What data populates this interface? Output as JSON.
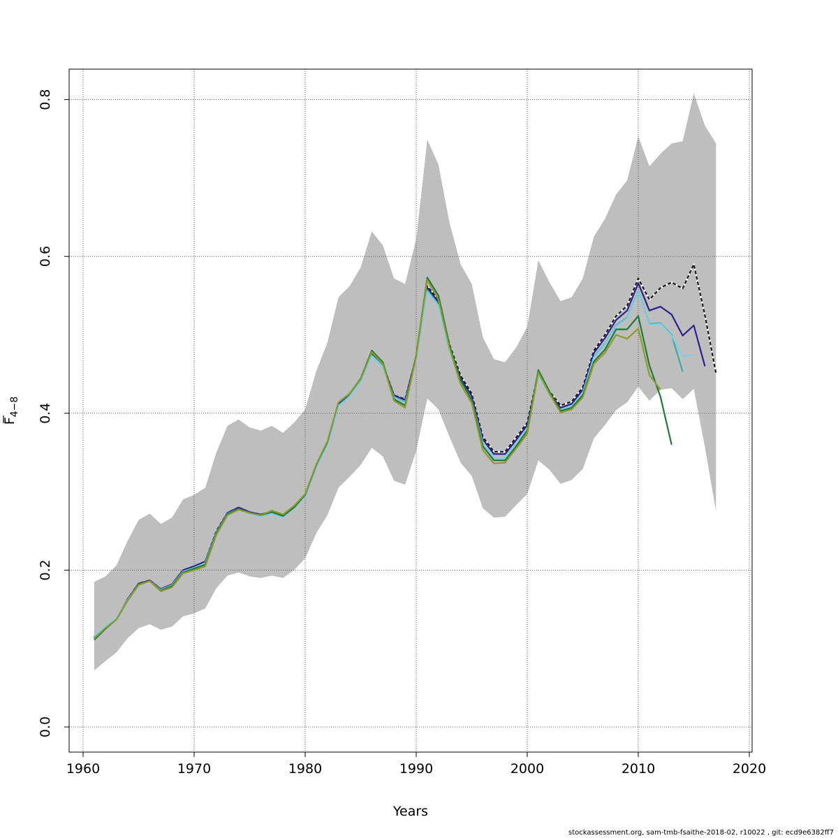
{
  "chart_data": {
    "type": "line",
    "xlabel": "Years",
    "ylabel_main": "F",
    "ylabel_sub": "4−8",
    "xlim": [
      1960,
      2020
    ],
    "ylim": [
      0.0,
      0.8
    ],
    "xticks": [
      "1960",
      "1970",
      "1980",
      "1990",
      "2000",
      "2010",
      "2020"
    ],
    "yticks": [
      "0.0",
      "0.2",
      "0.4",
      "0.6",
      "0.8"
    ],
    "grid": true,
    "confidence_band": {
      "years": [
        1961,
        1962,
        1963,
        1964,
        1965,
        1966,
        1967,
        1968,
        1969,
        1970,
        1971,
        1972,
        1973,
        1974,
        1975,
        1976,
        1977,
        1978,
        1979,
        1980,
        1981,
        1982,
        1983,
        1984,
        1985,
        1986,
        1987,
        1988,
        1989,
        1990,
        1991,
        1992,
        1993,
        1994,
        1995,
        1996,
        1997,
        1998,
        1999,
        2000,
        2001,
        2002,
        2003,
        2004,
        2005,
        2006,
        2007,
        2008,
        2009,
        2010,
        2011,
        2012,
        2013,
        2014,
        2015,
        2016,
        2017
      ],
      "upper": [
        0.185,
        0.192,
        0.206,
        0.237,
        0.264,
        0.272,
        0.259,
        0.267,
        0.29,
        0.296,
        0.305,
        0.35,
        0.384,
        0.392,
        0.382,
        0.378,
        0.384,
        0.375,
        0.388,
        0.405,
        0.454,
        0.49,
        0.548,
        0.562,
        0.586,
        0.632,
        0.614,
        0.572,
        0.565,
        0.622,
        0.749,
        0.717,
        0.643,
        0.59,
        0.565,
        0.497,
        0.469,
        0.465,
        0.484,
        0.51,
        0.595,
        0.567,
        0.543,
        0.548,
        0.572,
        0.625,
        0.648,
        0.679,
        0.697,
        0.753,
        0.715,
        0.731,
        0.744,
        0.747,
        0.808,
        0.767,
        0.744
      ],
      "lower": [
        0.072,
        0.084,
        0.095,
        0.113,
        0.126,
        0.131,
        0.124,
        0.128,
        0.141,
        0.145,
        0.151,
        0.177,
        0.193,
        0.197,
        0.192,
        0.19,
        0.193,
        0.19,
        0.2,
        0.215,
        0.247,
        0.27,
        0.305,
        0.319,
        0.334,
        0.356,
        0.345,
        0.314,
        0.309,
        0.352,
        0.419,
        0.405,
        0.37,
        0.337,
        0.32,
        0.279,
        0.267,
        0.268,
        0.283,
        0.297,
        0.34,
        0.328,
        0.31,
        0.315,
        0.329,
        0.368,
        0.385,
        0.404,
        0.414,
        0.434,
        0.416,
        0.43,
        0.432,
        0.418,
        0.431,
        0.357,
        0.275
      ]
    },
    "series": [
      {
        "color": "#1a1a1a",
        "dashed": true,
        "years": [
          1961,
          1962,
          1963,
          1964,
          1965,
          1966,
          1967,
          1968,
          1969,
          1970,
          1971,
          1972,
          1973,
          1974,
          1975,
          1976,
          1977,
          1978,
          1979,
          1980,
          1981,
          1982,
          1983,
          1984,
          1985,
          1986,
          1987,
          1988,
          1989,
          1990,
          1991,
          1992,
          1993,
          1994,
          1995,
          1996,
          1997,
          1998,
          1999,
          2000,
          2001,
          2002,
          2003,
          2004,
          2005,
          2006,
          2007,
          2008,
          2009,
          2010,
          2011,
          2012,
          2013,
          2014,
          2015,
          2016,
          2017
        ],
        "values": [
          0.114,
          0.126,
          0.138,
          0.163,
          0.183,
          0.187,
          0.176,
          0.182,
          0.2,
          0.205,
          0.211,
          0.25,
          0.273,
          0.28,
          0.274,
          0.271,
          0.275,
          0.27,
          0.281,
          0.296,
          0.334,
          0.363,
          0.413,
          0.424,
          0.443,
          0.477,
          0.463,
          0.423,
          0.418,
          0.472,
          0.562,
          0.545,
          0.488,
          0.448,
          0.425,
          0.37,
          0.351,
          0.351,
          0.369,
          0.388,
          0.452,
          0.428,
          0.41,
          0.415,
          0.433,
          0.48,
          0.5,
          0.524,
          0.537,
          0.572,
          0.545,
          0.56,
          0.567,
          0.559,
          0.59,
          0.525,
          0.451
        ]
      },
      {
        "color": "#2e1f8f",
        "dashed": false,
        "years": [
          1961,
          1962,
          1963,
          1964,
          1965,
          1966,
          1967,
          1968,
          1969,
          1970,
          1971,
          1972,
          1973,
          1974,
          1975,
          1976,
          1977,
          1978,
          1979,
          1980,
          1981,
          1982,
          1983,
          1984,
          1985,
          1986,
          1987,
          1988,
          1989,
          1990,
          1991,
          1992,
          1993,
          1994,
          1995,
          1996,
          1997,
          1998,
          1999,
          2000,
          2001,
          2002,
          2003,
          2004,
          2005,
          2006,
          2007,
          2008,
          2009,
          2010,
          2011,
          2012,
          2013,
          2014,
          2015,
          2016
        ],
        "values": [
          0.114,
          0.126,
          0.138,
          0.163,
          0.183,
          0.187,
          0.176,
          0.182,
          0.2,
          0.205,
          0.211,
          0.249,
          0.273,
          0.28,
          0.274,
          0.271,
          0.275,
          0.269,
          0.28,
          0.295,
          0.333,
          0.362,
          0.412,
          0.423,
          0.442,
          0.476,
          0.462,
          0.423,
          0.417,
          0.472,
          0.56,
          0.542,
          0.485,
          0.445,
          0.422,
          0.367,
          0.348,
          0.348,
          0.366,
          0.385,
          0.45,
          0.426,
          0.407,
          0.412,
          0.43,
          0.477,
          0.496,
          0.519,
          0.531,
          0.566,
          0.531,
          0.536,
          0.526,
          0.499,
          0.512,
          0.46
        ]
      },
      {
        "color": "#3fa8a0",
        "dashed": false,
        "years": [
          1961,
          1962,
          1963,
          1964,
          1965,
          1966,
          1967,
          1968,
          1969,
          1970,
          1971,
          1972,
          1973,
          1974,
          1975,
          1976,
          1977,
          1978,
          1979,
          1980,
          1981,
          1982,
          1983,
          1984,
          1985,
          1986,
          1987,
          1988,
          1989,
          1990,
          1991,
          1992,
          1993,
          1994,
          1995,
          1996,
          1997,
          1998,
          1999,
          2000,
          2001,
          2002,
          2003,
          2004,
          2005,
          2006,
          2007,
          2008,
          2009,
          2010,
          2011,
          2012,
          2013,
          2014
        ],
        "values": [
          0.115,
          0.127,
          0.138,
          0.162,
          0.182,
          0.186,
          0.175,
          0.181,
          0.198,
          0.203,
          0.209,
          0.248,
          0.272,
          0.278,
          0.273,
          0.269,
          0.273,
          0.268,
          0.279,
          0.294,
          0.332,
          0.36,
          0.41,
          0.422,
          0.441,
          0.474,
          0.461,
          0.421,
          0.414,
          0.47,
          0.557,
          0.538,
          0.48,
          0.441,
          0.417,
          0.362,
          0.343,
          0.343,
          0.361,
          0.38,
          0.451,
          0.425,
          0.404,
          0.409,
          0.426,
          0.472,
          0.488,
          0.512,
          0.522,
          0.555,
          0.514,
          0.515,
          0.5,
          0.453
        ]
      },
      {
        "color": "#7fd0e6",
        "dashed": false,
        "years": [
          1961,
          1962,
          1963,
          1964,
          1965,
          1966,
          1967,
          1968,
          1969,
          1970,
          1971,
          1972,
          1973,
          1974,
          1975,
          1976,
          1977,
          1978,
          1979,
          1980,
          1981,
          1982,
          1983,
          1984,
          1985,
          1986,
          1987,
          1988,
          1989,
          1990,
          1991,
          1992,
          1993,
          1994,
          1995,
          1996,
          1997,
          1998,
          1999,
          2000,
          2001,
          2002,
          2003,
          2004,
          2005,
          2006,
          2007,
          2008,
          2009,
          2010,
          2011,
          2012,
          2013,
          2014,
          2015
        ],
        "values": [
          0.116,
          0.128,
          0.139,
          0.162,
          0.182,
          0.186,
          0.175,
          0.181,
          0.198,
          0.203,
          0.209,
          0.248,
          0.271,
          0.278,
          0.272,
          0.268,
          0.272,
          0.267,
          0.279,
          0.294,
          0.331,
          0.359,
          0.409,
          0.421,
          0.44,
          0.473,
          0.459,
          0.42,
          0.413,
          0.469,
          0.555,
          0.537,
          0.48,
          0.44,
          0.417,
          0.362,
          0.343,
          0.343,
          0.361,
          0.38,
          0.449,
          0.424,
          0.404,
          0.409,
          0.426,
          0.471,
          0.487,
          0.511,
          0.521,
          0.554,
          0.513,
          0.514,
          0.499,
          0.473,
          0.474
        ]
      },
      {
        "color": "#1f7a3a",
        "dashed": false,
        "years": [
          1961,
          1962,
          1963,
          1964,
          1965,
          1966,
          1967,
          1968,
          1969,
          1970,
          1971,
          1972,
          1973,
          1974,
          1975,
          1976,
          1977,
          1978,
          1979,
          1980,
          1981,
          1982,
          1983,
          1984,
          1985,
          1986,
          1987,
          1988,
          1989,
          1990,
          1991,
          1992,
          1993,
          1994,
          1995,
          1996,
          1997,
          1998,
          1999,
          2000,
          2001,
          2002,
          2003,
          2004,
          2005,
          2006,
          2007,
          2008,
          2009,
          2010,
          2011,
          2012,
          2013
        ],
        "values": [
          0.111,
          0.125,
          0.137,
          0.161,
          0.182,
          0.186,
          0.174,
          0.18,
          0.197,
          0.202,
          0.207,
          0.247,
          0.271,
          0.278,
          0.273,
          0.27,
          0.274,
          0.269,
          0.28,
          0.296,
          0.334,
          0.363,
          0.414,
          0.425,
          0.444,
          0.48,
          0.465,
          0.418,
          0.41,
          0.474,
          0.573,
          0.55,
          0.487,
          0.442,
          0.417,
          0.358,
          0.34,
          0.34,
          0.358,
          0.378,
          0.455,
          0.428,
          0.403,
          0.407,
          0.423,
          0.466,
          0.481,
          0.507,
          0.507,
          0.524,
          0.461,
          0.421,
          0.36
        ]
      },
      {
        "color": "#8f9a2b",
        "dashed": false,
        "years": [
          1961,
          1962,
          1963,
          1964,
          1965,
          1966,
          1967,
          1968,
          1969,
          1970,
          1971,
          1972,
          1973,
          1974,
          1975,
          1976,
          1977,
          1978,
          1979,
          1980,
          1981,
          1982,
          1983,
          1984,
          1985,
          1986,
          1987,
          1988,
          1989,
          1990,
          1991,
          1992,
          1993,
          1994,
          1995,
          1996,
          1997,
          1998,
          1999,
          2000,
          2001,
          2002,
          2003,
          2004,
          2005,
          2006,
          2007,
          2008,
          2009,
          2010,
          2011,
          2012
        ],
        "values": [
          0.113,
          0.126,
          0.137,
          0.161,
          0.181,
          0.186,
          0.173,
          0.178,
          0.196,
          0.2,
          0.205,
          0.245,
          0.27,
          0.277,
          0.273,
          0.27,
          0.276,
          0.271,
          0.282,
          0.297,
          0.335,
          0.364,
          0.414,
          0.425,
          0.443,
          0.478,
          0.463,
          0.416,
          0.407,
          0.472,
          0.57,
          0.545,
          0.483,
          0.437,
          0.413,
          0.353,
          0.336,
          0.337,
          0.355,
          0.374,
          0.452,
          0.425,
          0.401,
          0.405,
          0.42,
          0.463,
          0.477,
          0.5,
          0.495,
          0.508,
          0.449,
          0.43
        ]
      }
    ]
  },
  "footer": {
    "text": "stockassessment.org, sam-tmb-fsaithe-2018-02, r10022 , git: ecd9e6382ff7"
  }
}
